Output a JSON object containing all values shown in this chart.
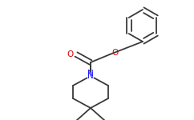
{
  "background_color": "#ffffff",
  "bond_color": "#3a3a3a",
  "atom_colors": {
    "N": "#1a1aff",
    "O": "#dd0000",
    "NH2": "#1a1aff"
  },
  "bond_width": 1.3,
  "figsize": [
    2.42,
    1.5
  ],
  "dpi": 100,
  "xlim": [
    0,
    242
  ],
  "ylim": [
    0,
    150
  ]
}
